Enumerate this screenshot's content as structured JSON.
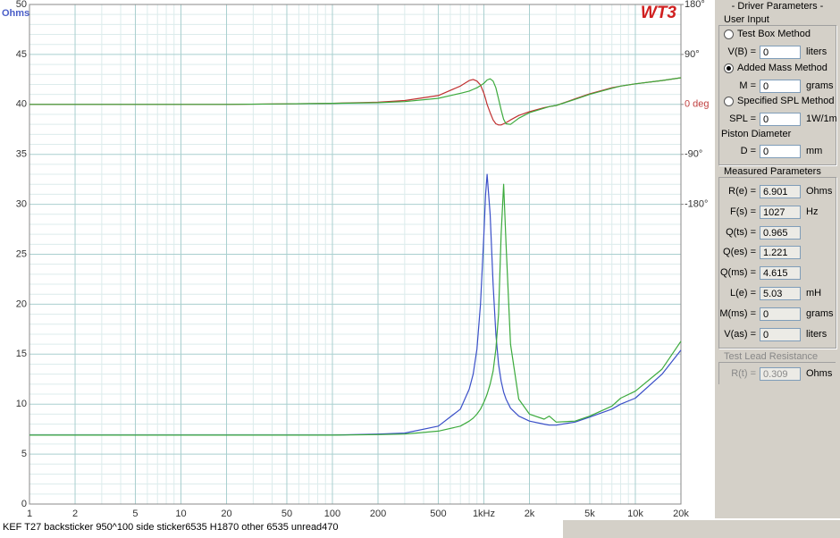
{
  "chart_data": {
    "type": "line",
    "logo": "WT3",
    "ylabel": "Ohms",
    "xscale": "log",
    "grid": true,
    "x": [
      1,
      2,
      5,
      10,
      20,
      50,
      100,
      200,
      300,
      500,
      700,
      800,
      850,
      900,
      950,
      1000,
      1027,
      1050,
      1100,
      1150,
      1200,
      1250,
      1300,
      1350,
      1400,
      1500,
      1700,
      2000,
      2500,
      2700,
      3000,
      4000,
      5000,
      7000,
      8000,
      10000,
      15000,
      20000
    ],
    "series": [
      {
        "color": "#3a4fc8",
        "values": [
          6.9,
          6.9,
          6.9,
          6.9,
          6.9,
          6.9,
          6.9,
          7.0,
          7.1,
          7.8,
          9.5,
          11.5,
          13,
          15.5,
          20,
          27,
          31,
          33,
          29,
          22,
          17,
          14,
          12.3,
          11.2,
          10.5,
          9.6,
          8.8,
          8.3,
          8.0,
          7.9,
          7.9,
          8.2,
          8.7,
          9.5,
          10,
          10.6,
          13,
          15.4
        ]
      },
      {
        "color": "#3caa3c",
        "values": [
          6.9,
          6.9,
          6.9,
          6.9,
          6.9,
          6.9,
          6.9,
          6.95,
          7.0,
          7.3,
          7.8,
          8.3,
          8.6,
          9.0,
          9.5,
          10.2,
          10.6,
          11,
          12,
          13.3,
          15.5,
          19,
          27,
          32,
          26,
          16,
          10.5,
          9.0,
          8.5,
          8.8,
          8.2,
          8.3,
          8.8,
          9.8,
          10.6,
          11.3,
          13.5,
          16.3
        ]
      },
      {
        "color": "#c03030",
        "axis": "y2",
        "values": [
          0,
          0,
          0,
          0,
          0,
          1,
          2,
          4,
          7,
          16,
          33,
          43,
          45,
          42,
          35,
          20,
          10,
          0,
          -15,
          -28,
          -35,
          -37,
          -37,
          -35,
          -33,
          -28,
          -20,
          -13,
          -6,
          -4,
          -2,
          10,
          19,
          30,
          33,
          37,
          43,
          48
        ]
      },
      {
        "color": "#3caa3c",
        "axis": "y2",
        "values": [
          0,
          0,
          0,
          0,
          0,
          1,
          2,
          3,
          5,
          11,
          20,
          24,
          27,
          30,
          34,
          38,
          41,
          44,
          46,
          42,
          30,
          10,
          -10,
          -27,
          -35,
          -36,
          -25,
          -15,
          -7,
          -4,
          -2,
          9,
          18,
          29,
          33,
          37,
          43,
          48
        ]
      }
    ],
    "xlim": [
      1,
      20000
    ],
    "xticks": [
      1,
      2,
      5,
      10,
      20,
      50,
      100,
      200,
      500,
      {
        "value": 1000,
        "label": "1kHz"
      },
      {
        "value": 2000,
        "label": "2k"
      },
      {
        "value": 5000,
        "label": "5k"
      },
      {
        "value": 10000,
        "label": "10k"
      },
      {
        "value": 20000,
        "label": "20k"
      }
    ],
    "xticks_minor": [
      3,
      4,
      6,
      7,
      8,
      9,
      30,
      40,
      60,
      70,
      80,
      90,
      300,
      400,
      600,
      700,
      800,
      900,
      3000,
      4000,
      6000,
      7000,
      8000,
      9000
    ],
    "ylim": [
      0,
      50
    ],
    "yticks": [
      0,
      5,
      10,
      15,
      20,
      25,
      30,
      35,
      40,
      45,
      50
    ],
    "yticks_minor": [
      1,
      2,
      3,
      4,
      6,
      7,
      8,
      9,
      11,
      12,
      13,
      14,
      16,
      17,
      18,
      19,
      21,
      22,
      23,
      24,
      26,
      27,
      28,
      29,
      31,
      32,
      33,
      34,
      36,
      37,
      38,
      39,
      41,
      42,
      43,
      44,
      46,
      47,
      48,
      49
    ],
    "y2lim": [
      -720,
      180
    ],
    "y2ticks": [
      {
        "value": 180,
        "label": "180°"
      },
      {
        "value": 90,
        "label": "90°"
      },
      {
        "value": 0,
        "label": "0 deg",
        "color": "#c04040"
      },
      {
        "value": -90,
        "label": "-90°"
      },
      {
        "value": -180,
        "label": "-180°"
      }
    ]
  },
  "status": "KEF T27 backsticker 950^100 side sticker6535 H1870 other 6535 unread470",
  "panel": {
    "title": "- Driver Parameters -",
    "user_input": {
      "title": "User Input",
      "methods": [
        {
          "label": "Test Box Method",
          "selected": false,
          "field": "V(B) =",
          "value": 0,
          "unit": "liters"
        },
        {
          "label": "Added Mass Method",
          "selected": true,
          "field": "M =",
          "value": 0,
          "unit": "grams"
        },
        {
          "label": "Specified SPL Method",
          "selected": false,
          "field": "SPL =",
          "value": 0,
          "unit": "1W/1m"
        }
      ],
      "piston": {
        "label": "Piston Diameter",
        "field": "D =",
        "value": 0,
        "unit": "mm"
      }
    },
    "measured": {
      "title": "Measured Parameters",
      "rows": [
        {
          "field": "R(e) =",
          "value": 6.901,
          "unit": "Ohms"
        },
        {
          "field": "F(s) =",
          "value": 1027,
          "unit": "Hz"
        },
        {
          "field": "Q(ts) =",
          "value": 0.965
        },
        {
          "field": "Q(es) =",
          "value": 1.221
        },
        {
          "field": "Q(ms) =",
          "value": 4.615
        },
        {
          "field": "L(e) =",
          "value": 5.03,
          "unit": "mH"
        },
        {
          "field": "M(ms) =",
          "value": 0,
          "unit": "grams"
        },
        {
          "field": "V(as) =",
          "value": 0,
          "unit": "liters"
        }
      ]
    },
    "lead": {
      "title": "Test Lead Resistance",
      "field": "R(t) =",
      "value": 0.309,
      "unit": "Ohms"
    }
  }
}
